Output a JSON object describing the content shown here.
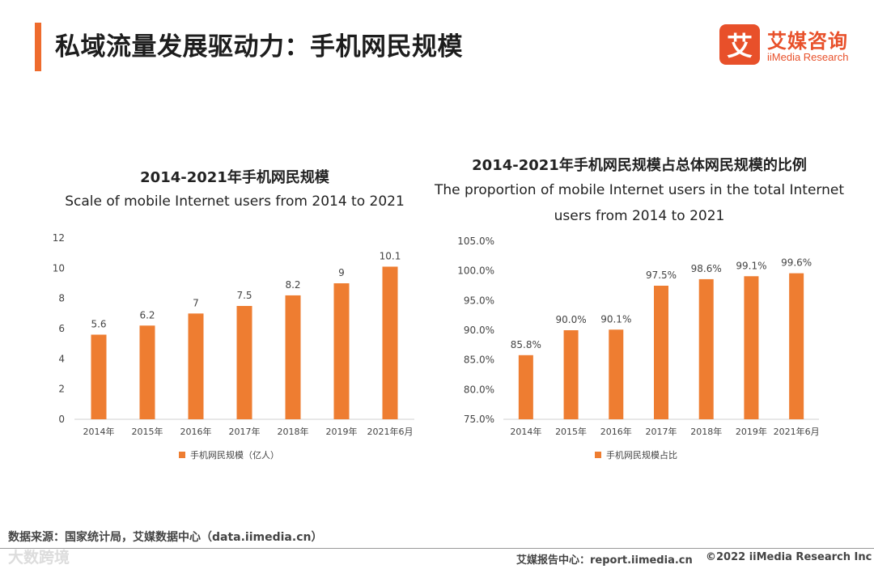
{
  "header": {
    "title": "私域流量发展驱动力：手机网民规模",
    "accent_color": "#ee6b2d"
  },
  "logo": {
    "mark": "艾",
    "cn": "艾媒咨询",
    "en": "iiMedia Research",
    "color": "#e8502a"
  },
  "chart_data": [
    {
      "type": "bar",
      "title": "2014-2021年手机网民规模",
      "subtitle": "Scale of mobile Internet users from 2014 to 2021",
      "categories": [
        "2014年",
        "2015年",
        "2016年",
        "2017年",
        "2018年",
        "2019年",
        "2021年6月"
      ],
      "values": [
        5.6,
        6.2,
        7,
        7.5,
        8.2,
        9,
        10.1
      ],
      "value_labels": [
        "5.6",
        "6.2",
        "7",
        "7.5",
        "8.2",
        "9",
        "10.1"
      ],
      "ylim": [
        0,
        12
      ],
      "yticks": [
        0,
        2,
        4,
        6,
        8,
        10,
        12
      ],
      "ytick_labels": [
        "0",
        "2",
        "4",
        "6",
        "8",
        "10",
        "12"
      ],
      "legend": "手机网民规模（亿人）",
      "legend_position": "bottom",
      "color": "#ee7d31",
      "grid": false
    },
    {
      "type": "bar",
      "title": "2014-2021年手机网民规模占总体网民规模的比例",
      "subtitle": "The proportion of mobile Internet users in the total Internet users from 2014 to 2021",
      "categories": [
        "2014年",
        "2015年",
        "2016年",
        "2017年",
        "2018年",
        "2019年",
        "2021年6月"
      ],
      "values": [
        85.8,
        90.0,
        90.1,
        97.5,
        98.6,
        99.1,
        99.6
      ],
      "value_labels": [
        "85.8%",
        "90.0%",
        "90.1%",
        "97.5%",
        "98.6%",
        "99.1%",
        "99.6%"
      ],
      "ylim": [
        75,
        105
      ],
      "yticks": [
        75,
        80,
        85,
        90,
        95,
        100,
        105
      ],
      "ytick_labels": [
        "75.0%",
        "80.0%",
        "85.0%",
        "90.0%",
        "95.0%",
        "100.0%",
        "105.0%"
      ],
      "legend": "手机网民规模占比",
      "legend_position": "bottom",
      "color": "#ee7d31",
      "grid": false
    }
  ],
  "footer": {
    "source": "数据来源：国家统计局，艾媒数据中心（data.iimedia.cn）",
    "report": "艾媒报告中心：report.iimedia.cn",
    "copyright": "©2022 iiMedia Research Inc",
    "watermark": "大数跨境"
  }
}
